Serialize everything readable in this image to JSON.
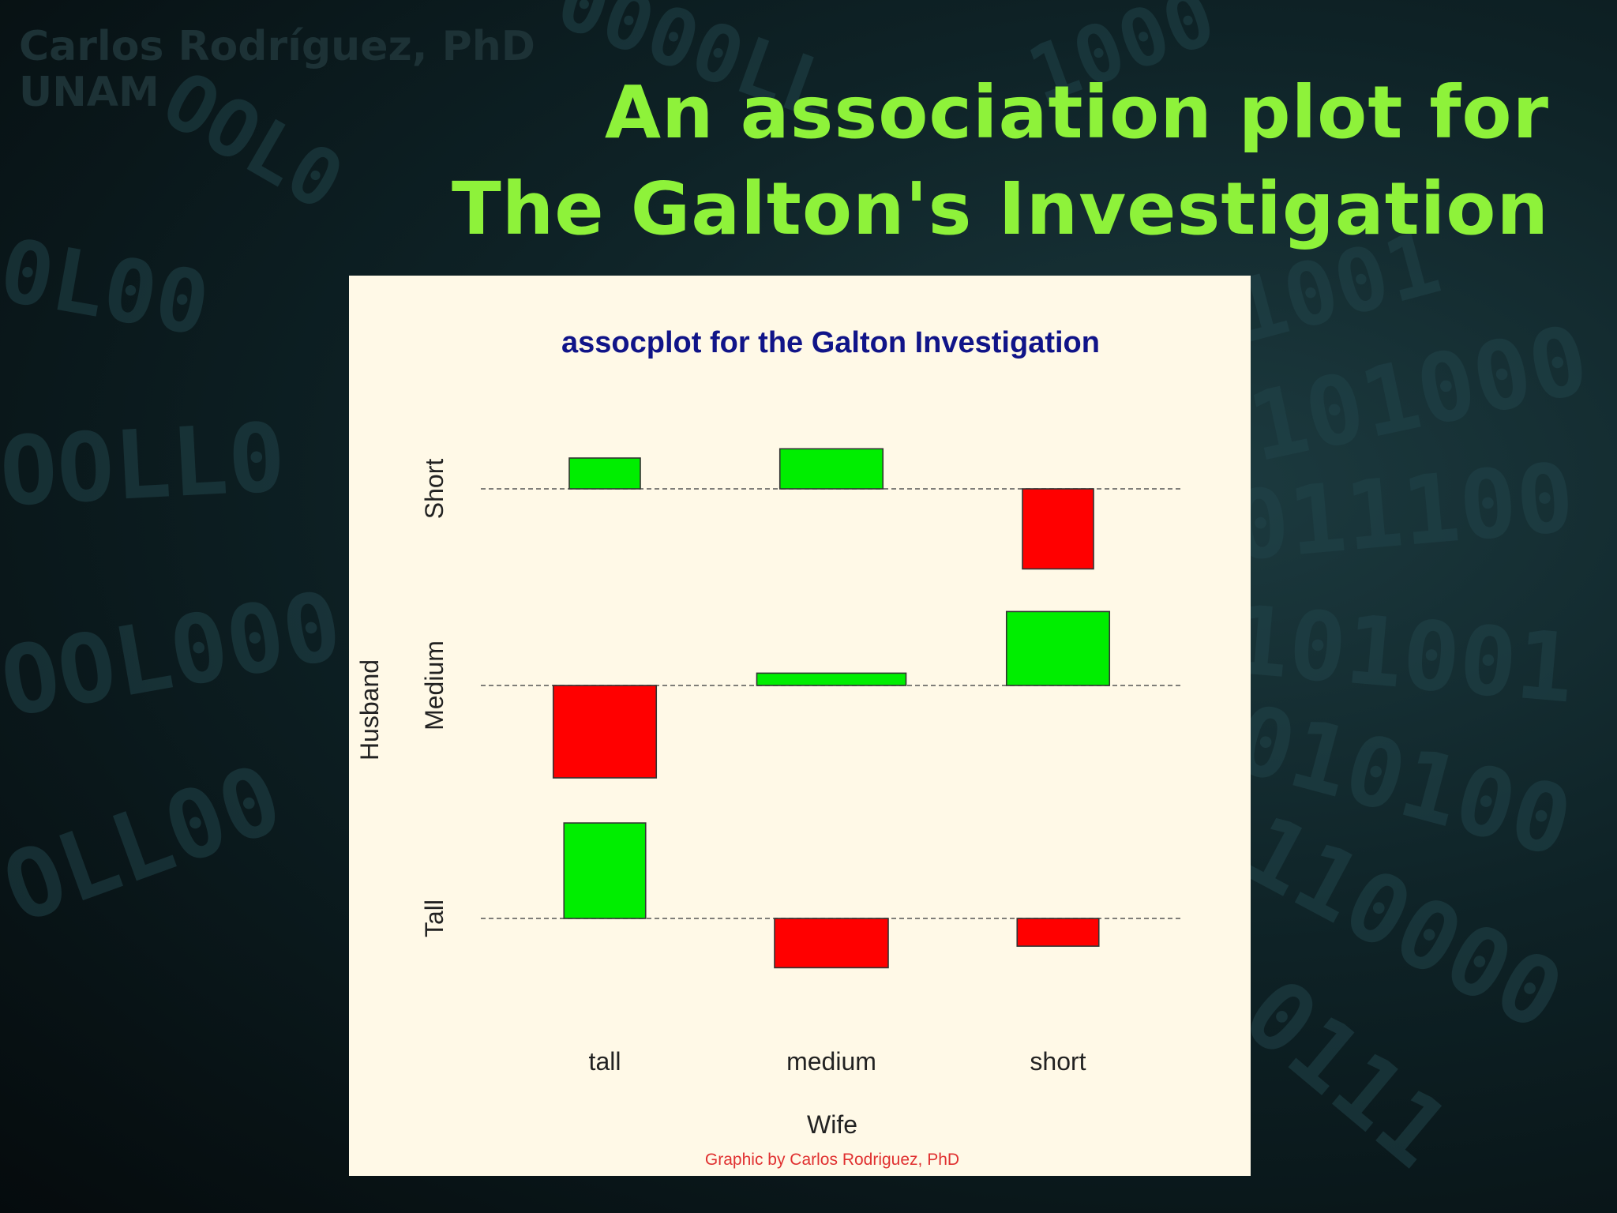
{
  "author": {
    "name": "Carlos Rodríguez, PhD",
    "affiliation": "UNAM"
  },
  "slide_title": {
    "line1": "An association plot for",
    "line2": "The Galton's Investigation"
  },
  "colors": {
    "title": "#8ef23a",
    "positive": "#00ee00",
    "negative": "#ff0000",
    "panel": "#fff9e7",
    "plot_title": "#101488",
    "credit": "#e03030"
  },
  "chart_data": {
    "type": "assocplot",
    "title": "assocplot for the Galton Investigation",
    "xlabel": "Wife",
    "ylabel": "Husband",
    "x_categories": [
      "tall",
      "medium",
      "short"
    ],
    "y_categories": [
      "Tall",
      "Medium",
      "Short"
    ],
    "cells": [
      {
        "husband": "Short",
        "wife": "tall",
        "residual": 1.0,
        "width": 1.0
      },
      {
        "husband": "Short",
        "wife": "medium",
        "residual": 1.3,
        "width": 1.45
      },
      {
        "husband": "Short",
        "wife": "short",
        "residual": -2.6,
        "width": 1.0
      },
      {
        "husband": "Medium",
        "wife": "tall",
        "residual": -3.0,
        "width": 1.45
      },
      {
        "husband": "Medium",
        "wife": "medium",
        "residual": 0.4,
        "width": 2.1
      },
      {
        "husband": "Medium",
        "wife": "short",
        "residual": 2.4,
        "width": 1.45
      },
      {
        "husband": "Tall",
        "wife": "tall",
        "residual": 3.1,
        "width": 1.15
      },
      {
        "husband": "Tall",
        "wife": "medium",
        "residual": -1.6,
        "width": 1.6
      },
      {
        "husband": "Tall",
        "wife": "short",
        "residual": -0.9,
        "width": 1.15
      }
    ],
    "credit": "Graphic by Carlos Rodriguez, PhD"
  }
}
